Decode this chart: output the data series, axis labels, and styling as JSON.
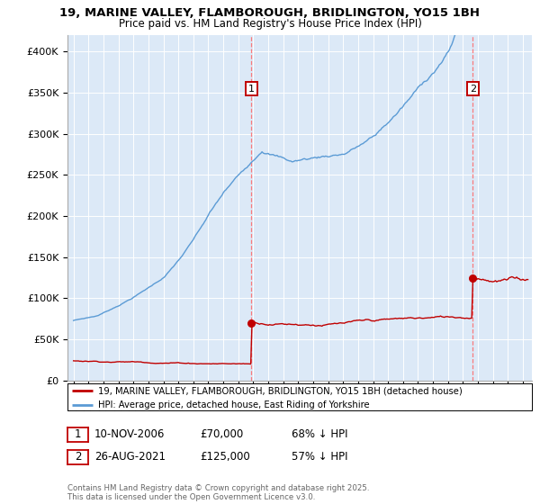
{
  "title_line1": "19, MARINE VALLEY, FLAMBOROUGH, BRIDLINGTON, YO15 1BH",
  "title_line2": "Price paid vs. HM Land Registry's House Price Index (HPI)",
  "bg_color": "#dce9f7",
  "grid_color": "#ffffff",
  "hpi_color": "#5b9bd5",
  "price_color": "#c00000",
  "vline_color": "#ff6666",
  "annotation_box_color": "#c00000",
  "ylim_min": 0,
  "ylim_max": 420000,
  "yticks": [
    0,
    50000,
    100000,
    150000,
    200000,
    250000,
    300000,
    350000,
    400000
  ],
  "sale1_year_f": 2006.87,
  "sale1_price": 70000,
  "sale2_year_f": 2021.65,
  "sale2_price": 125000,
  "legend_line1": "19, MARINE VALLEY, FLAMBOROUGH, BRIDLINGTON, YO15 1BH (detached house)",
  "legend_line2": "HPI: Average price, detached house, East Riding of Yorkshire",
  "note1_date": "10-NOV-2006",
  "note1_price": "£70,000",
  "note1_hpi": "68% ↓ HPI",
  "note2_date": "26-AUG-2021",
  "note2_price": "£125,000",
  "note2_hpi": "57% ↓ HPI",
  "footer": "Contains HM Land Registry data © Crown copyright and database right 2025.\nThis data is licensed under the Open Government Licence v3.0."
}
